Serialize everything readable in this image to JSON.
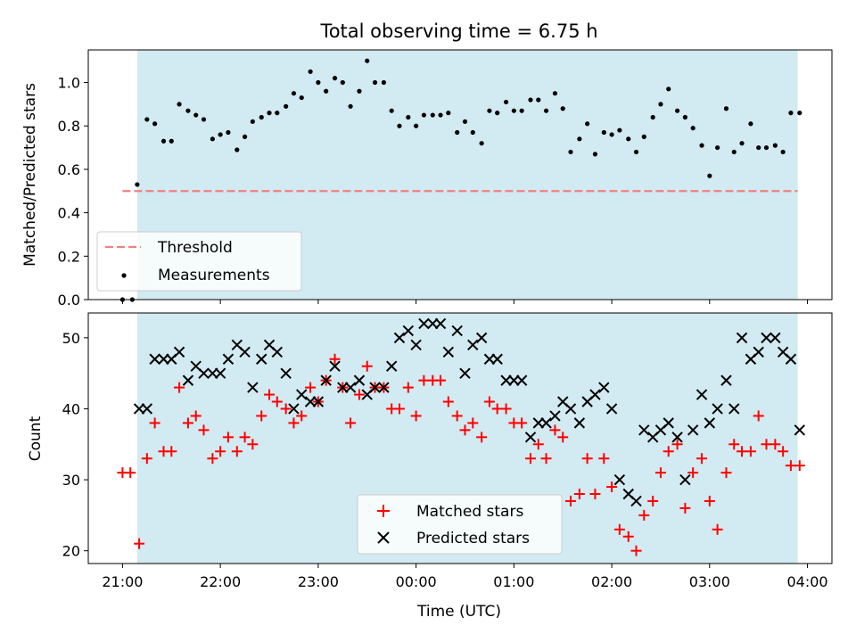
{
  "figure": {
    "title": "Total observing time = 6.75 h",
    "xlabel": "Time (UTC)",
    "xticks": [
      {
        "t": 0,
        "label": "21:00"
      },
      {
        "t": 1,
        "label": "22:00"
      },
      {
        "t": 2,
        "label": "23:00"
      },
      {
        "t": 3,
        "label": "00:00"
      },
      {
        "t": 4,
        "label": "01:00"
      },
      {
        "t": 5,
        "label": "02:00"
      },
      {
        "t": 6,
        "label": "03:00"
      },
      {
        "t": 7,
        "label": "04:00"
      }
    ],
    "observing_window_hours": [
      0.15,
      6.9
    ],
    "xlim_hours_after_2100": [
      -0.35,
      7.25
    ],
    "colors": {
      "window": "#add8e6",
      "threshold": "#f08080",
      "matched": "#ff0000",
      "predicted": "#000000",
      "measurement": "#000000"
    }
  },
  "chart_data": [
    {
      "type": "scatter",
      "panel": "top",
      "ylabel": "Matched/Predicted stars",
      "ylim": [
        0,
        1.15
      ],
      "yticks": [
        "0.0",
        "0.2",
        "0.4",
        "0.6",
        "0.8",
        "1.0"
      ],
      "threshold": {
        "name": "Threshold",
        "y": 0.5,
        "x_range": [
          0.0,
          6.9
        ]
      },
      "legend": {
        "placement": "lower-left",
        "entries": [
          "Threshold",
          "Measurements"
        ]
      },
      "series": [
        {
          "name": "Measurements",
          "x": [
            0.0,
            0.1,
            0.15,
            0.25,
            0.33,
            0.42,
            0.5,
            0.58,
            0.67,
            0.75,
            0.83,
            0.92,
            1.0,
            1.08,
            1.17,
            1.25,
            1.33,
            1.42,
            1.5,
            1.58,
            1.67,
            1.75,
            1.83,
            1.92,
            2.0,
            2.08,
            2.17,
            2.25,
            2.33,
            2.42,
            2.5,
            2.58,
            2.67,
            2.75,
            2.83,
            2.92,
            3.0,
            3.08,
            3.17,
            3.25,
            3.33,
            3.42,
            3.5,
            3.58,
            3.67,
            3.75,
            3.83,
            3.92,
            4.0,
            4.08,
            4.17,
            4.25,
            4.33,
            4.42,
            4.5,
            4.58,
            4.67,
            4.75,
            4.83,
            4.92,
            5.0,
            5.08,
            5.17,
            5.25,
            5.33,
            5.42,
            5.5,
            5.58,
            5.67,
            5.75,
            5.83,
            5.92,
            6.0,
            6.08,
            6.17,
            6.25,
            6.33,
            6.42,
            6.5,
            6.58,
            6.67,
            6.75,
            6.83,
            6.92
          ],
          "y": [
            0.0,
            0.0,
            0.53,
            0.83,
            0.81,
            0.73,
            0.73,
            0.9,
            0.87,
            0.85,
            0.83,
            0.74,
            0.76,
            0.77,
            0.69,
            0.75,
            0.82,
            0.84,
            0.86,
            0.86,
            0.89,
            0.95,
            0.93,
            1.05,
            1.0,
            0.96,
            1.02,
            1.0,
            0.89,
            0.96,
            1.1,
            1.0,
            1.0,
            0.87,
            0.8,
            0.84,
            0.8,
            0.85,
            0.85,
            0.85,
            0.86,
            0.77,
            0.82,
            0.77,
            0.72,
            0.87,
            0.86,
            0.91,
            0.87,
            0.87,
            0.92,
            0.92,
            0.87,
            0.95,
            0.88,
            0.68,
            0.74,
            0.81,
            0.67,
            0.77,
            0.76,
            0.78,
            0.74,
            0.68,
            0.75,
            0.84,
            0.9,
            0.97,
            0.87,
            0.84,
            0.79,
            0.71,
            0.57,
            0.7,
            0.88,
            0.68,
            0.72,
            0.81,
            0.7,
            0.7,
            0.71,
            0.68,
            0.86,
            0.86
          ]
        }
      ]
    },
    {
      "type": "scatter",
      "panel": "bottom",
      "ylabel": "Count",
      "ylim": [
        18.2,
        53.5
      ],
      "yticks": [
        "20",
        "30",
        "40",
        "50"
      ],
      "legend": {
        "placement": "lower-center",
        "entries": [
          "Matched stars",
          "Predicted stars"
        ]
      },
      "series": [
        {
          "name": "Matched stars",
          "marker": "plus",
          "x": [
            0.0,
            0.08,
            0.17,
            0.25,
            0.33,
            0.42,
            0.5,
            0.58,
            0.67,
            0.75,
            0.83,
            0.92,
            1.0,
            1.08,
            1.17,
            1.25,
            1.33,
            1.42,
            1.5,
            1.58,
            1.67,
            1.75,
            1.83,
            1.92,
            2.0,
            2.08,
            2.17,
            2.25,
            2.33,
            2.42,
            2.5,
            2.58,
            2.67,
            2.75,
            2.83,
            2.92,
            3.0,
            3.08,
            3.17,
            3.25,
            3.33,
            3.42,
            3.5,
            3.58,
            3.67,
            3.75,
            3.83,
            3.92,
            4.0,
            4.08,
            4.17,
            4.25,
            4.33,
            4.42,
            4.5,
            4.58,
            4.67,
            4.75,
            4.83,
            4.92,
            5.0,
            5.08,
            5.17,
            5.25,
            5.33,
            5.42,
            5.5,
            5.58,
            5.67,
            5.75,
            5.83,
            5.92,
            6.0,
            6.08,
            6.17,
            6.25,
            6.33,
            6.42,
            6.5,
            6.58,
            6.67,
            6.75,
            6.83,
            6.92
          ],
          "y": [
            31,
            31,
            21,
            33,
            38,
            34,
            34,
            43,
            38,
            39,
            37,
            33,
            34,
            36,
            34,
            36,
            35,
            39,
            42,
            41,
            40,
            38,
            39,
            43,
            41,
            44,
            47,
            43,
            38,
            42,
            46,
            43,
            43,
            40,
            40,
            43,
            39,
            44,
            44,
            44,
            41,
            39,
            37,
            38,
            36,
            41,
            40,
            40,
            38,
            38,
            33,
            35,
            33,
            37,
            36,
            27,
            28,
            33,
            28,
            33,
            29,
            23,
            22,
            20,
            25,
            27,
            31,
            34,
            35,
            26,
            31,
            33,
            27,
            23,
            31,
            35,
            34,
            34,
            39,
            35,
            35,
            34,
            32,
            32
          ]
        },
        {
          "name": "Predicted stars",
          "marker": "x",
          "x": [
            0.17,
            0.25,
            0.33,
            0.42,
            0.5,
            0.58,
            0.67,
            0.75,
            0.83,
            0.92,
            1.0,
            1.08,
            1.17,
            1.25,
            1.33,
            1.42,
            1.5,
            1.58,
            1.67,
            1.75,
            1.83,
            1.92,
            2.0,
            2.08,
            2.17,
            2.25,
            2.33,
            2.42,
            2.5,
            2.58,
            2.67,
            2.75,
            2.83,
            2.92,
            3.0,
            3.08,
            3.17,
            3.25,
            3.33,
            3.42,
            3.5,
            3.58,
            3.67,
            3.75,
            3.83,
            3.92,
            4.0,
            4.08,
            4.17,
            4.25,
            4.33,
            4.42,
            4.5,
            4.58,
            4.67,
            4.75,
            4.83,
            4.92,
            5.0,
            5.08,
            5.17,
            5.25,
            5.33,
            5.42,
            5.5,
            5.58,
            5.67,
            5.75,
            5.83,
            5.92,
            6.0,
            6.08,
            6.17,
            6.25,
            6.33,
            6.42,
            6.5,
            6.58,
            6.67,
            6.75,
            6.83,
            6.92
          ],
          "y": [
            40,
            40,
            47,
            47,
            47,
            48,
            44,
            46,
            45,
            45,
            45,
            47,
            49,
            48,
            43,
            47,
            49,
            48,
            45,
            40,
            42,
            41,
            41,
            44,
            46,
            43,
            43,
            44,
            42,
            43,
            43,
            46,
            50,
            51,
            49,
            52,
            52,
            52,
            48,
            51,
            45,
            49,
            50,
            47,
            47,
            44,
            44,
            44,
            36,
            38,
            38,
            39,
            41,
            40,
            38,
            41,
            42,
            43,
            40,
            30,
            28,
            27,
            37,
            36,
            37,
            38,
            36,
            30,
            37,
            42,
            38,
            40,
            44,
            40,
            50,
            47,
            48,
            50,
            50,
            48,
            47,
            37
          ]
        }
      ]
    }
  ]
}
